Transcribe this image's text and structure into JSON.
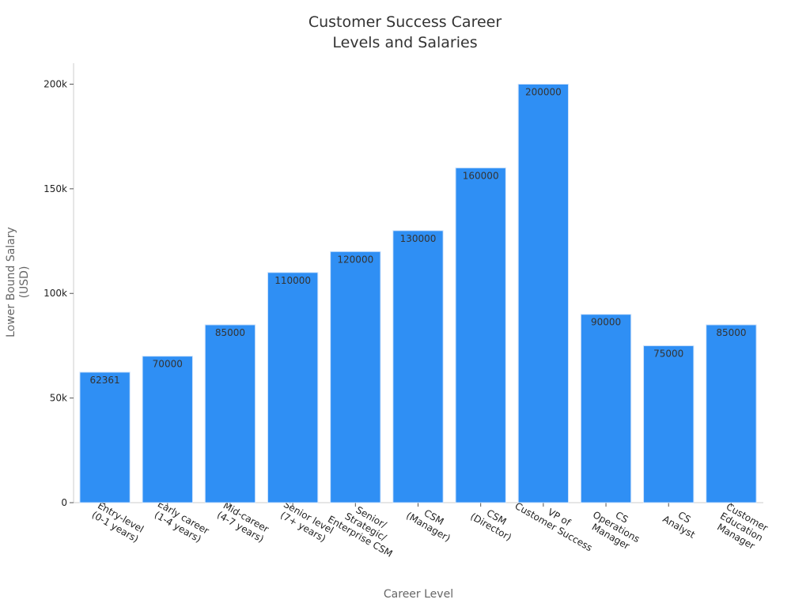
{
  "chart_data": {
    "type": "bar",
    "title": [
      "Customer Success Career",
      "Levels and Salaries"
    ],
    "x_label": "Career Level",
    "y_label": [
      "Lower Bound Salary",
      "(USD)"
    ],
    "categories": [
      [
        "Entry-level",
        "(0-1 years)"
      ],
      [
        "Early career",
        "(1-4 years)"
      ],
      [
        "Mid-career",
        "(4-7 years)"
      ],
      [
        "Senior level",
        "(7+ years)"
      ],
      [
        "Senior/",
        "Strategic/",
        "Enterprise CSM"
      ],
      [
        "CSM",
        "(Manager)"
      ],
      [
        "CSM",
        "(Director)"
      ],
      [
        "VP of",
        "Customer Success"
      ],
      [
        "CS",
        "Operations",
        "Manager"
      ],
      [
        "CS",
        "Analyst"
      ],
      [
        "Customer",
        "Education",
        "Manager"
      ]
    ],
    "values": [
      62361,
      70000,
      85000,
      110000,
      120000,
      130000,
      160000,
      200000,
      90000,
      75000,
      85000
    ],
    "color": "#2f8ff4",
    "ylim": [
      0,
      210000
    ],
    "yticks": [
      0,
      {
        "value": 50000,
        "label": "50k"
      },
      {
        "value": 100000,
        "label": "100k"
      },
      {
        "value": 150000,
        "label": "150k"
      },
      {
        "value": 200000,
        "label": "200k"
      }
    ],
    "grid": false
  }
}
